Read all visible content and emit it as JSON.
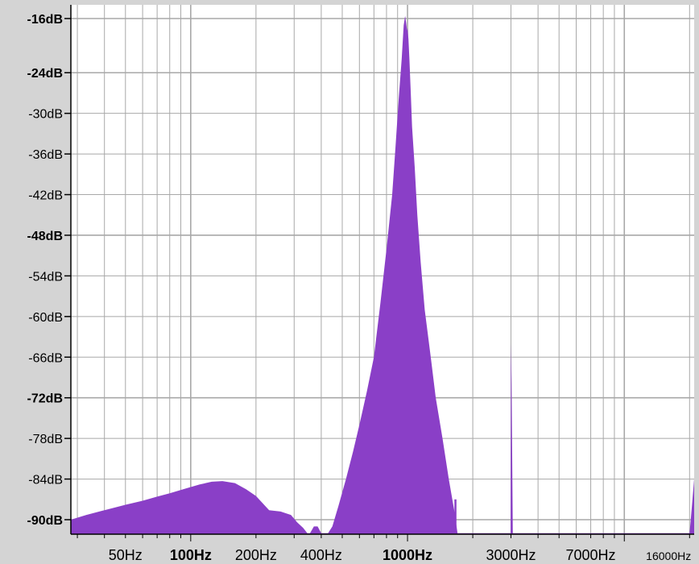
{
  "chart_data": {
    "type": "area",
    "title": "",
    "xlabel": "",
    "ylabel": "",
    "x_scale": "log",
    "xlim": [
      28,
      21000
    ],
    "ylim": [
      -92,
      -15
    ],
    "grid": true,
    "colors": {
      "fill": "#8a3fc7",
      "background": "#ffffff",
      "grid": "#a8a8a8",
      "frame": "#d4d4d4"
    },
    "y_ticks": [
      {
        "value": -16,
        "label": "-16dB",
        "major": true
      },
      {
        "value": -24,
        "label": "-24dB",
        "major": true
      },
      {
        "value": -30,
        "label": "-30dB",
        "major": false
      },
      {
        "value": -36,
        "label": "-36dB",
        "major": false
      },
      {
        "value": -42,
        "label": "-42dB",
        "major": false
      },
      {
        "value": -48,
        "label": "-48dB",
        "major": true
      },
      {
        "value": -54,
        "label": "-54dB",
        "major": false
      },
      {
        "value": -60,
        "label": "-60dB",
        "major": false
      },
      {
        "value": -66,
        "label": "-66dB",
        "major": false
      },
      {
        "value": -72,
        "label": "-72dB",
        "major": true
      },
      {
        "value": -78,
        "label": "-78dB",
        "major": false
      },
      {
        "value": -84,
        "label": "-84dB",
        "major": false
      },
      {
        "value": -90,
        "label": "-90dB",
        "major": true
      }
    ],
    "x_ticks": [
      {
        "value": 50,
        "label": "50Hz",
        "major": false,
        "small": false
      },
      {
        "value": 100,
        "label": "100Hz",
        "major": true,
        "small": false
      },
      {
        "value": 200,
        "label": "200Hz",
        "major": false,
        "small": false
      },
      {
        "value": 400,
        "label": "400Hz",
        "major": false,
        "small": false
      },
      {
        "value": 1000,
        "label": "1000Hz",
        "major": true,
        "small": false
      },
      {
        "value": 3000,
        "label": "3000Hz",
        "major": false,
        "small": false
      },
      {
        "value": 7000,
        "label": "7000Hz",
        "major": false,
        "small": false
      },
      {
        "value": 16000,
        "label": "16000Hz",
        "major": false,
        "small": true
      }
    ],
    "series": [
      {
        "x": [
          28,
          33,
          40,
          50,
          60,
          70,
          80,
          95,
          110,
          125,
          140,
          160,
          180,
          200,
          230,
          260,
          290,
          310,
          330,
          345,
          355,
          370,
          385,
          400,
          430,
          450,
          480,
          520,
          560,
          600,
          650,
          700,
          750,
          800,
          850,
          880,
          910,
          940,
          960,
          975,
          985,
          995,
          1000,
          1010,
          1020,
          1035,
          1050,
          1080,
          1110,
          1150,
          1200,
          1280,
          1350,
          1450,
          1550,
          1650,
          1700,
          2000,
          2500,
          2990,
          3000,
          3020,
          3060,
          3100,
          4000,
          8000,
          15000,
          20000,
          20500,
          21000
        ],
        "y": [
          -90,
          -89.3,
          -88.6,
          -87.8,
          -87.2,
          -86.6,
          -86.1,
          -85.4,
          -84.8,
          -84.4,
          -84.3,
          -84.6,
          -85.5,
          -86.5,
          -88.6,
          -88.8,
          -89.3,
          -90.4,
          -91.2,
          -92,
          -92,
          -91,
          -91,
          -92,
          -92,
          -91,
          -88,
          -84,
          -80,
          -76,
          -71,
          -66,
          -58,
          -50,
          -42,
          -35,
          -28,
          -22,
          -17,
          -15.6,
          -16.6,
          -17.8,
          -17.4,
          -19,
          -22,
          -27,
          -32,
          -38,
          -45,
          -52,
          -59,
          -66,
          -72,
          -78,
          -84,
          -89,
          -92,
          -92,
          -92,
          -92,
          -64,
          -70,
          -92,
          -92,
          -92,
          -92,
          -92,
          -92,
          -88,
          -84
        ]
      }
    ],
    "spikes": [
      {
        "x": 1660,
        "y": -87
      }
    ]
  }
}
